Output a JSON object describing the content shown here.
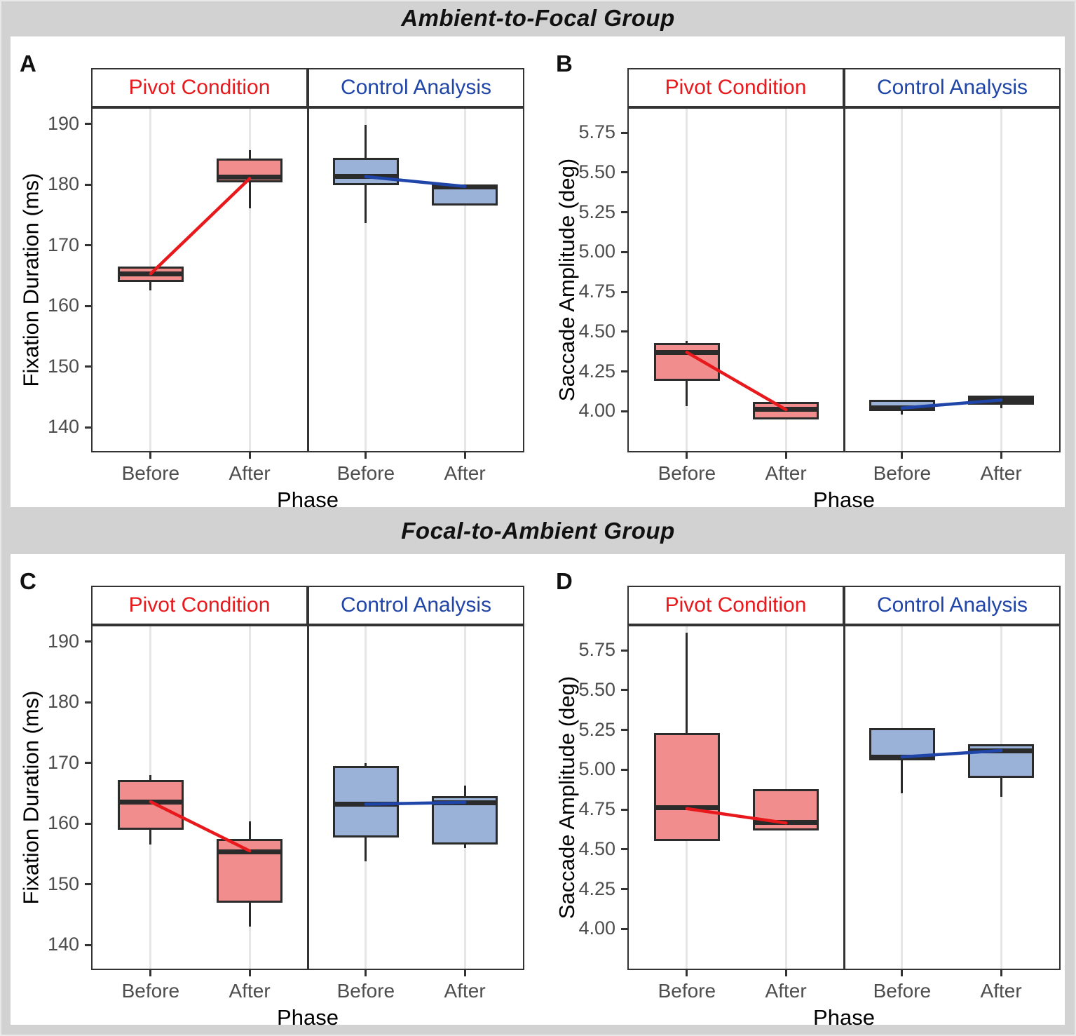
{
  "colors": {
    "page_bg": "#d2d2d2",
    "card_bg": "#ffffff",
    "panel_border": "#333333",
    "box_stroke": "#2b2b2b",
    "grid": "#e6e6e6",
    "tick_text": "#4d4d4d",
    "pivot_accent": "#e8191c",
    "pivot_fill": "#f18d8d",
    "control_accent": "#2045a8",
    "control_fill": "#9ab2d8"
  },
  "group_titles": [
    "Ambient-to-Focal Group",
    "Focal-to-Ambient Group"
  ],
  "chart_data": [
    {
      "type": "boxplot",
      "letter": "A",
      "group": "Ambient-to-Focal Group",
      "ylabel": "Fixation Duration (ms)",
      "xlabel": "Phase",
      "x_categories": [
        "Before",
        "After"
      ],
      "ylim": [
        136.1,
        192.5
      ],
      "yticks": [
        "190",
        "180",
        "170",
        "160",
        "150",
        "140"
      ],
      "grid": "vertical-only",
      "facets": [
        {
          "label": "Pivot Condition",
          "role": "pivot",
          "boxes": [
            {
              "x": "Before",
              "lo": 162.6,
              "q1": 164.0,
              "med": 165.3,
              "q3": 166.5,
              "hi": null
            },
            {
              "x": "After",
              "lo": 176.1,
              "q1": 180.4,
              "med": 181.2,
              "q3": 184.3,
              "hi": 185.7
            }
          ],
          "trend": [
            165.3,
            181.0
          ]
        },
        {
          "label": "Control Analysis",
          "role": "control",
          "boxes": [
            {
              "x": "Before",
              "lo": 173.7,
              "q1": 179.9,
              "med": 181.4,
              "q3": 184.4,
              "hi": 189.8
            },
            {
              "x": "After",
              "lo": null,
              "q1": 176.6,
              "med": 179.6,
              "q3": 180.0,
              "hi": null
            }
          ],
          "trend": [
            181.3,
            179.7
          ]
        }
      ]
    },
    {
      "type": "boxplot",
      "letter": "B",
      "group": "Ambient-to-Focal Group",
      "ylabel": "Saccade Amplitude (deg)",
      "xlabel": "Phase",
      "x_categories": [
        "Before",
        "After"
      ],
      "ylim": [
        3.75,
        5.9
      ],
      "yticks": [
        "5.75",
        "5.50",
        "5.25",
        "5.00",
        "4.75",
        "4.50",
        "4.25",
        "4.00"
      ],
      "grid": "vertical-only",
      "facets": [
        {
          "label": "Pivot Condition",
          "role": "pivot",
          "boxes": [
            {
              "x": "Before",
              "lo": 4.03,
              "q1": 4.19,
              "med": 4.37,
              "q3": 4.43,
              "hi": 4.44
            },
            {
              "x": "After",
              "lo": null,
              "q1": 3.95,
              "med": 4.01,
              "q3": 4.06,
              "hi": null
            }
          ],
          "trend": [
            4.37,
            4.01
          ]
        },
        {
          "label": "Control Analysis",
          "role": "control",
          "boxes": [
            {
              "x": "Before",
              "lo": 3.98,
              "q1": 4.0,
              "med": 4.02,
              "q3": 4.07,
              "hi": null
            },
            {
              "x": "After",
              "lo": 4.02,
              "q1": 4.04,
              "med": 4.07,
              "q3": 4.1,
              "hi": null
            }
          ],
          "trend": [
            4.02,
            4.07
          ]
        }
      ]
    },
    {
      "type": "boxplot",
      "letter": "C",
      "group": "Focal-to-Ambient Group",
      "ylabel": "Fixation Duration (ms)",
      "xlabel": "Phase",
      "x_categories": [
        "Before",
        "After"
      ],
      "ylim": [
        136.1,
        192.5
      ],
      "yticks": [
        "190",
        "180",
        "170",
        "160",
        "150",
        "140"
      ],
      "grid": "vertical-only",
      "facets": [
        {
          "label": "Pivot Condition",
          "role": "pivot",
          "boxes": [
            {
              "x": "Before",
              "lo": 156.5,
              "q1": 159.0,
              "med": 163.5,
              "q3": 167.2,
              "hi": 168.0
            },
            {
              "x": "After",
              "lo": 143.0,
              "q1": 147.0,
              "med": 155.4,
              "q3": 157.5,
              "hi": 160.4
            }
          ],
          "trend": [
            163.6,
            155.5
          ]
        },
        {
          "label": "Control Analysis",
          "role": "control",
          "boxes": [
            {
              "x": "Before",
              "lo": 153.8,
              "q1": 157.7,
              "med": 163.2,
              "q3": 169.5,
              "hi": 170.0
            },
            {
              "x": "After",
              "lo": 156.0,
              "q1": 156.5,
              "med": 163.4,
              "q3": 164.5,
              "hi": 166.3
            }
          ],
          "trend": [
            163.2,
            163.5
          ]
        }
      ]
    },
    {
      "type": "boxplot",
      "letter": "D",
      "group": "Focal-to-Ambient Group",
      "ylabel": "Saccade Amplitude (deg)",
      "xlabel": "Phase",
      "x_categories": [
        "Before",
        "After"
      ],
      "ylim": [
        3.75,
        5.9
      ],
      "yticks": [
        "5.75",
        "5.50",
        "5.25",
        "5.00",
        "4.75",
        "4.50",
        "4.25",
        "4.00"
      ],
      "grid": "vertical-only",
      "facets": [
        {
          "label": "Pivot Condition",
          "role": "pivot",
          "boxes": [
            {
              "x": "Before",
              "lo": null,
              "q1": 4.55,
              "med": 4.76,
              "q3": 5.23,
              "hi": 5.86
            },
            {
              "x": "After",
              "lo": null,
              "q1": 4.62,
              "med": 4.67,
              "q3": 4.88,
              "hi": null
            }
          ],
          "trend": [
            4.755,
            4.665
          ]
        },
        {
          "label": "Control Analysis",
          "role": "control",
          "boxes": [
            {
              "x": "Before",
              "lo": 4.85,
              "q1": 5.06,
              "med": 5.08,
              "q3": 5.26,
              "hi": null
            },
            {
              "x": "After",
              "lo": 4.83,
              "q1": 4.95,
              "med": 5.12,
              "q3": 5.16,
              "hi": null
            }
          ],
          "trend": [
            5.08,
            5.12
          ]
        }
      ]
    }
  ]
}
